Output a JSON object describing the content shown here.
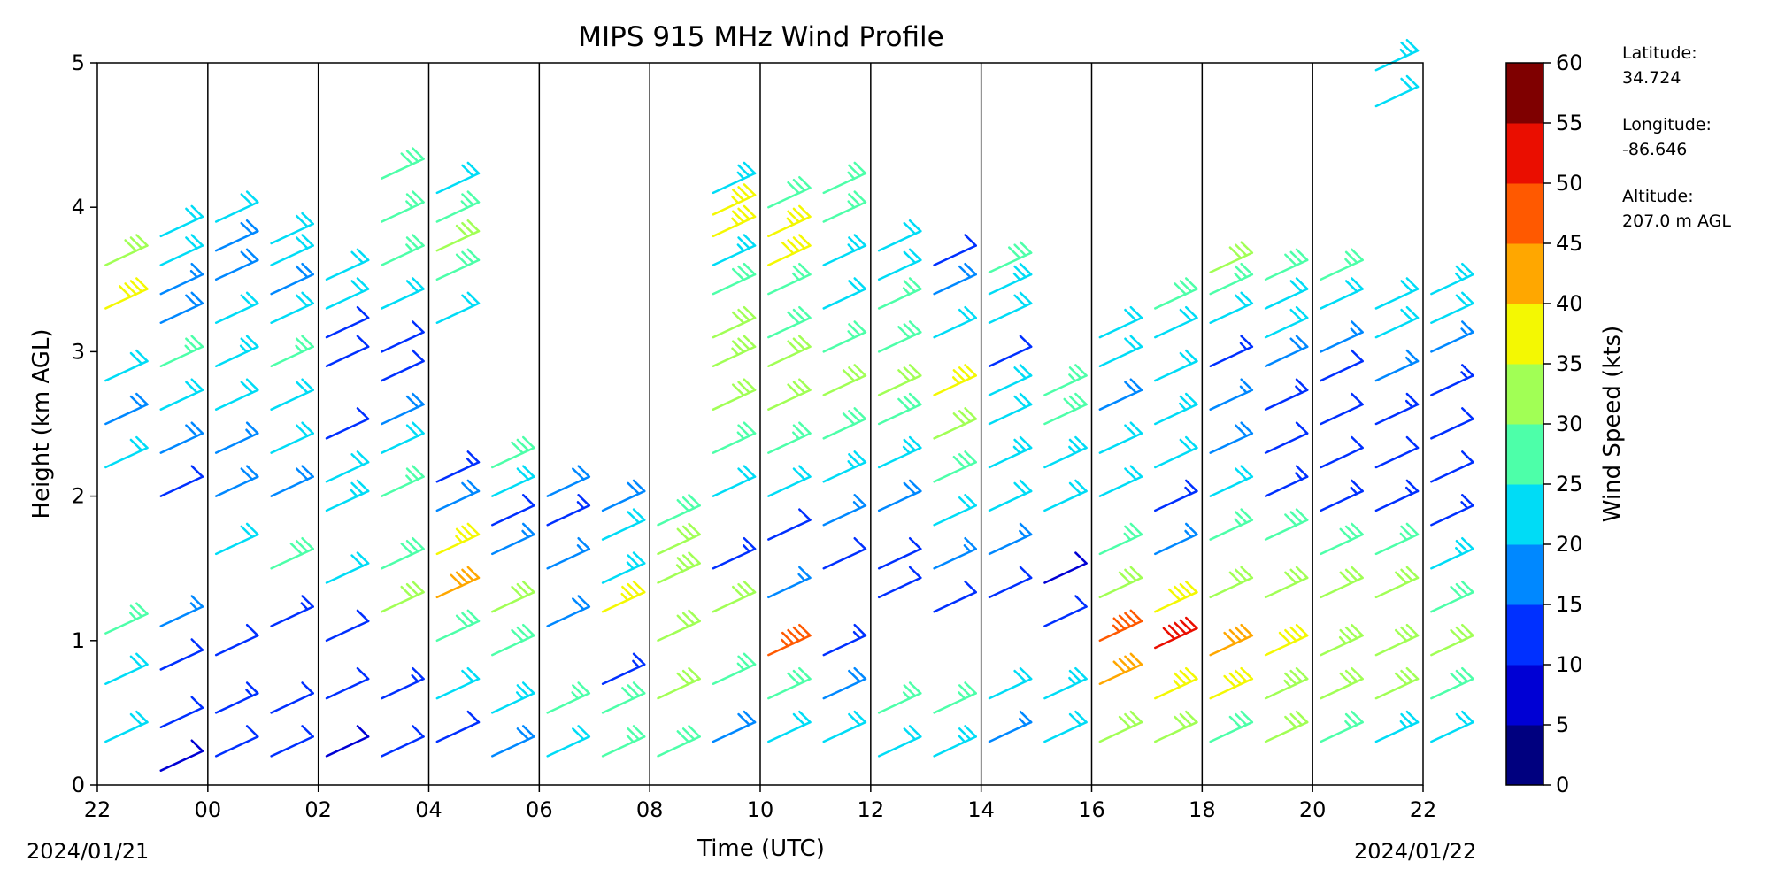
{
  "chart_data": {
    "type": "wind-barb-profile",
    "title": "MIPS 915 MHz Wind Profile",
    "xlabel": "Time (UTC)",
    "ylabel": "Height (km AGL)",
    "x_ticks": [
      "22",
      "00",
      "02",
      "04",
      "06",
      "08",
      "10",
      "12",
      "14",
      "16",
      "18",
      "20",
      "22"
    ],
    "y_ticks": [
      "0",
      "1",
      "2",
      "3",
      "4",
      "5"
    ],
    "ylim": [
      0,
      5
    ],
    "start_date": "2024/01/21",
    "end_date": "2024/01/22",
    "colorbar": {
      "label": "Wind Speed (kts)",
      "ticks": [
        "0",
        "5",
        "10",
        "15",
        "20",
        "25",
        "30",
        "35",
        "40",
        "45",
        "50",
        "55",
        "60"
      ],
      "range": [
        0,
        60
      ],
      "colors": [
        "#00007f",
        "#0000d4",
        "#0030ff",
        "#0088ff",
        "#00dcf6",
        "#4dffa9",
        "#a1ff55",
        "#f4f802",
        "#ffa700",
        "#ff5900",
        "#ea0e00",
        "#7f0000"
      ]
    },
    "station": {
      "lat_label": "Latitude:",
      "lat": "34.724",
      "lon_label": "Longitude:",
      "lon": "-86.646",
      "alt_label": "Altitude:",
      "alt": "207.0 m AGL"
    },
    "profile_time_offsets_hours": [
      -1,
      0,
      1,
      2,
      3,
      4,
      5,
      6,
      7,
      8,
      9,
      10,
      11,
      12,
      13,
      14,
      15,
      16,
      17,
      18,
      19,
      20,
      21,
      22,
      23
    ],
    "profiles": [
      {
        "speed": [
          20,
          22,
          25,
          20,
          18,
          22,
          38,
          30
        ],
        "heights": [
          0.3,
          0.7,
          1.05,
          2.2,
          2.5,
          2.8,
          3.3,
          3.6
        ]
      },
      {
        "speed": [
          8,
          10,
          12,
          15,
          12,
          18,
          22,
          25,
          18,
          15,
          20,
          22
        ],
        "heights": [
          0.1,
          0.4,
          0.8,
          1.1,
          2.0,
          2.3,
          2.6,
          2.9,
          3.2,
          3.4,
          3.6,
          3.8
        ]
      },
      {
        "speed": [
          12,
          14,
          10,
          20,
          18,
          16,
          22,
          24,
          20,
          18,
          18,
          22
        ],
        "heights": [
          0.2,
          0.5,
          0.9,
          1.6,
          2.0,
          2.3,
          2.6,
          2.9,
          3.2,
          3.5,
          3.7,
          3.9
        ]
      },
      {
        "speed": [
          10,
          12,
          14,
          28,
          18,
          20,
          22,
          25,
          20,
          18,
          20,
          22
        ],
        "heights": [
          0.2,
          0.5,
          1.1,
          1.5,
          2.0,
          2.3,
          2.6,
          2.9,
          3.2,
          3.4,
          3.6,
          3.75
        ]
      },
      {
        "speed": [
          8,
          12,
          10,
          22,
          24,
          20,
          12,
          10,
          12,
          22,
          20
        ],
        "heights": [
          0.2,
          0.6,
          1.0,
          1.4,
          1.9,
          2.1,
          2.4,
          2.9,
          3.1,
          3.3,
          3.5
        ]
      },
      {
        "speed": [
          10,
          14,
          30,
          28,
          25,
          22,
          18,
          12,
          10,
          22,
          25,
          26,
          28
        ],
        "heights": [
          0.2,
          0.6,
          1.2,
          1.5,
          2.0,
          2.3,
          2.5,
          2.8,
          3.0,
          3.3,
          3.6,
          3.9,
          4.2
        ]
      },
      {
        "speed": [
          12,
          20,
          28,
          40,
          35,
          18,
          14,
          22,
          28,
          30,
          26,
          22
        ],
        "heights": [
          0.3,
          0.6,
          1.0,
          1.3,
          1.6,
          1.9,
          2.1,
          3.2,
          3.5,
          3.7,
          3.9,
          4.1
        ]
      },
      {
        "speed": [
          18,
          24,
          28,
          30,
          15,
          12,
          22,
          28
        ],
        "heights": [
          0.2,
          0.5,
          0.9,
          1.2,
          1.6,
          1.8,
          2.0,
          2.2
        ]
      },
      {
        "speed": [
          22,
          25,
          18,
          16,
          14,
          18
        ],
        "heights": [
          0.2,
          0.5,
          1.1,
          1.5,
          1.8,
          2.0
        ]
      },
      {
        "speed": [
          25,
          28,
          14,
          35,
          24,
          20,
          18
        ],
        "heights": [
          0.2,
          0.5,
          0.7,
          1.2,
          1.4,
          1.7,
          1.9
        ]
      },
      {
        "speed": [
          28,
          30,
          32,
          34,
          30,
          28
        ],
        "heights": [
          0.2,
          0.6,
          1.0,
          1.4,
          1.6,
          1.8
        ]
      },
      {
        "speed": [
          18,
          26,
          30,
          14,
          22,
          26,
          30,
          34,
          32,
          28,
          24,
          35,
          36,
          24
        ],
        "heights": [
          0.3,
          0.7,
          1.2,
          1.5,
          2.0,
          2.3,
          2.6,
          2.9,
          3.1,
          3.4,
          3.6,
          3.8,
          3.95,
          4.1
        ]
      },
      {
        "speed": [
          22,
          28,
          45,
          16,
          10,
          20,
          26,
          30,
          32,
          28,
          26,
          38,
          36,
          28
        ],
        "heights": [
          0.3,
          0.6,
          0.9,
          1.3,
          1.7,
          2.0,
          2.3,
          2.6,
          2.9,
          3.1,
          3.4,
          3.6,
          3.8,
          4.0
        ]
      },
      {
        "speed": [
          20,
          18,
          14,
          10,
          16,
          24,
          28,
          30,
          26,
          22,
          24,
          26,
          26
        ],
        "heights": [
          0.3,
          0.6,
          0.9,
          1.5,
          1.8,
          2.1,
          2.4,
          2.7,
          3.0,
          3.3,
          3.6,
          3.9,
          4.1
        ]
      },
      {
        "speed": [
          22,
          25,
          10,
          12,
          18,
          24,
          28,
          30,
          28,
          26,
          22,
          20
        ],
        "heights": [
          0.2,
          0.5,
          1.3,
          1.5,
          1.9,
          2.2,
          2.5,
          2.7,
          3.0,
          3.3,
          3.5,
          3.7
        ]
      },
      {
        "speed": [
          24,
          26,
          12,
          16,
          22,
          28,
          32,
          35,
          20,
          18,
          12
        ],
        "heights": [
          0.2,
          0.5,
          1.2,
          1.5,
          1.8,
          2.1,
          2.4,
          2.7,
          3.1,
          3.4,
          3.6
        ]
      },
      {
        "speed": [
          16,
          20,
          10,
          16,
          22,
          24,
          22,
          20,
          10,
          20,
          24,
          28
        ],
        "heights": [
          0.3,
          0.6,
          1.3,
          1.6,
          1.9,
          2.2,
          2.5,
          2.7,
          2.9,
          3.2,
          3.4,
          3.55
        ]
      },
      {
        "speed": [
          22,
          24,
          12,
          8,
          20,
          24,
          28,
          26
        ],
        "heights": [
          0.3,
          0.6,
          1.1,
          1.4,
          1.9,
          2.2,
          2.5,
          2.7
        ]
      },
      {
        "speed": [
          30,
          40,
          45,
          32,
          26,
          22,
          20,
          18,
          20,
          22
        ],
        "heights": [
          0.3,
          0.7,
          1.0,
          1.3,
          1.6,
          2.0,
          2.3,
          2.6,
          2.9,
          3.1
        ]
      },
      {
        "speed": [
          30,
          35,
          50,
          38,
          16,
          14,
          20,
          24,
          22,
          20,
          28
        ],
        "heights": [
          0.3,
          0.6,
          0.95,
          1.2,
          1.6,
          1.9,
          2.2,
          2.5,
          2.8,
          3.1,
          3.3
        ]
      },
      {
        "speed": [
          28,
          38,
          40,
          30,
          26,
          20,
          18,
          16,
          14,
          20,
          26,
          30
        ],
        "heights": [
          0.3,
          0.6,
          0.9,
          1.3,
          1.7,
          2.0,
          2.3,
          2.6,
          2.9,
          3.2,
          3.4,
          3.55
        ]
      },
      {
        "speed": [
          30,
          34,
          38,
          32,
          28,
          14,
          12,
          14,
          18,
          20,
          22,
          28
        ],
        "heights": [
          0.3,
          0.6,
          0.9,
          1.3,
          1.7,
          2.0,
          2.3,
          2.6,
          2.9,
          3.1,
          3.3,
          3.5
        ]
      },
      {
        "speed": [
          26,
          32,
          34,
          30,
          28,
          14,
          12,
          10,
          12,
          16,
          22,
          26
        ],
        "heights": [
          0.3,
          0.6,
          0.9,
          1.3,
          1.6,
          1.9,
          2.2,
          2.5,
          2.8,
          3.0,
          3.3,
          3.5
        ]
      },
      {
        "speed": [
          24,
          30,
          32,
          30,
          26,
          14,
          12,
          14,
          16,
          22,
          22,
          22,
          24
        ],
        "heights": [
          0.3,
          0.6,
          0.9,
          1.3,
          1.6,
          1.9,
          2.2,
          2.5,
          2.8,
          3.1,
          3.3,
          4.7,
          4.95
        ]
      },
      {
        "speed": [
          22,
          28,
          30,
          28,
          24,
          14,
          12,
          12,
          14,
          16,
          20,
          24
        ],
        "heights": [
          0.3,
          0.6,
          0.9,
          1.2,
          1.5,
          1.8,
          2.1,
          2.4,
          2.7,
          3.0,
          3.2,
          3.4
        ]
      }
    ]
  }
}
